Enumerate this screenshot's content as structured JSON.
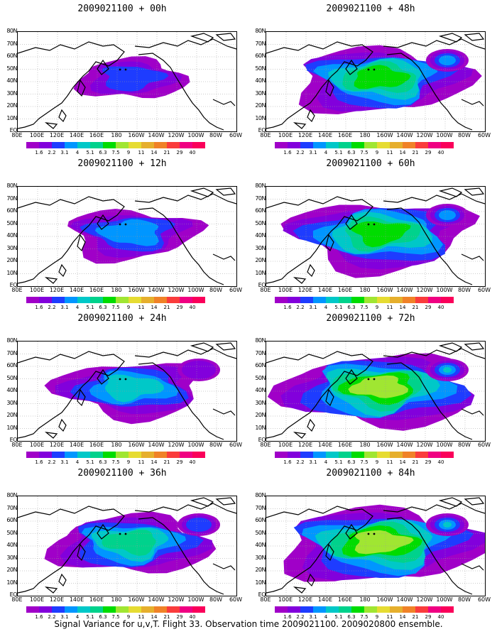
{
  "footer": "Signal Variance for u,v,T. Flight 33. Observation time 2009021100. 2009020800 ensemble.",
  "lat_labels": [
    "80N",
    "70N",
    "60N",
    "50N",
    "40N",
    "30N",
    "20N",
    "10N",
    "EQ"
  ],
  "lon_labels": [
    "80E",
    "100E",
    "120E",
    "140E",
    "160E",
    "180",
    "160W",
    "140W",
    "120W",
    "100W",
    "80W",
    "60W"
  ],
  "colorbar": {
    "colors": [
      "#a000c8",
      "#8200dc",
      "#1e3cff",
      "#0096ff",
      "#00c8c8",
      "#00d28c",
      "#00dc00",
      "#a0e632",
      "#e6dc32",
      "#e6af2d",
      "#f08228",
      "#fa3c3c",
      "#f00082"
    ],
    "labels": [
      "1.6",
      "2.2",
      "3.1",
      "4",
      "5.1",
      "6.3",
      "7.5",
      "9",
      "11",
      "14",
      "21",
      "29",
      "40"
    ]
  },
  "panels": [
    {
      "title": "2009021100 + 00h",
      "intensity": 0,
      "extent": 0.55
    },
    {
      "title": "2009021100 + 48h",
      "intensity": 4,
      "extent": 0.95
    },
    {
      "title": "2009021100 + 12h",
      "intensity": 1,
      "extent": 0.7
    },
    {
      "title": "2009021100 + 60h",
      "intensity": 4,
      "extent": 1.0
    },
    {
      "title": "2009021100 + 24h",
      "intensity": 2,
      "extent": 0.8
    },
    {
      "title": "2009021100 + 72h",
      "intensity": 5,
      "extent": 1.05
    },
    {
      "title": "2009021100 + 36h",
      "intensity": 3,
      "extent": 0.85
    },
    {
      "title": "2009021100 + 84h",
      "intensity": 5,
      "extent": 1.1
    }
  ]
}
